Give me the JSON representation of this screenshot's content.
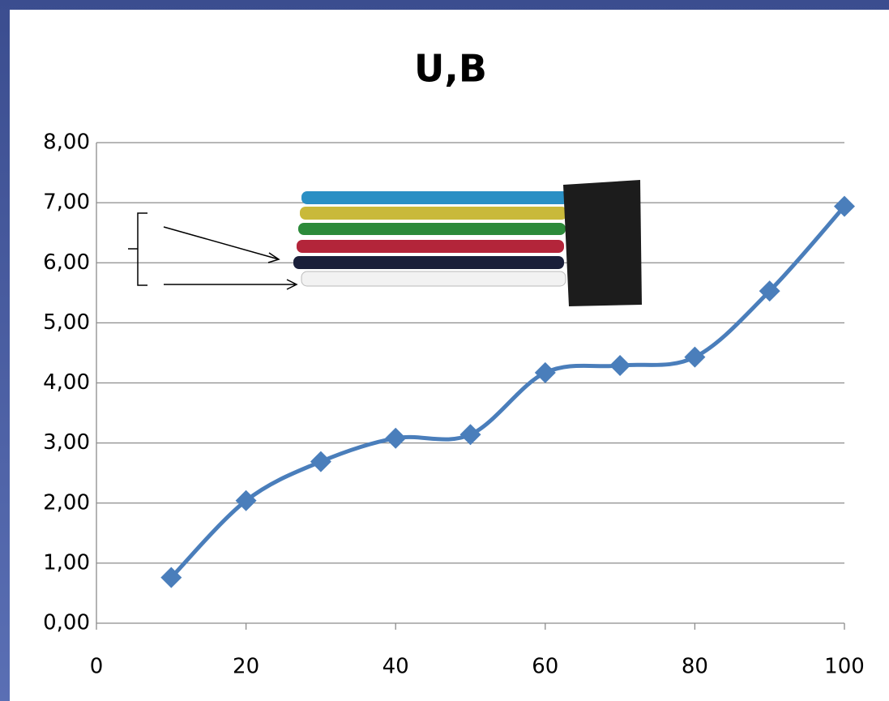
{
  "chart_data": {
    "type": "line",
    "title": "U,B",
    "x": [
      10,
      20,
      30,
      40,
      50,
      60,
      70,
      80,
      90,
      100
    ],
    "series": [
      {
        "color": "#4a7ebb",
        "values": [
          0.76,
          2.04,
          2.69,
          3.08,
          3.14,
          4.17,
          4.29,
          4.43,
          5.53,
          6.94
        ]
      }
    ],
    "xlim": [
      0,
      100
    ],
    "xticks": [
      0,
      20,
      40,
      60,
      80,
      100
    ],
    "ylim": [
      0,
      8
    ],
    "yticks": [
      {
        "value": 0,
        "label": "0,00"
      },
      {
        "value": 1,
        "label": "1,00"
      },
      {
        "value": 2,
        "label": "2,00"
      },
      {
        "value": 3,
        "label": "3,00"
      },
      {
        "value": 4,
        "label": "4,00"
      },
      {
        "value": 5,
        "label": "5,00"
      },
      {
        "value": 6,
        "label": "6,00"
      },
      {
        "value": 7,
        "label": "7,00"
      },
      {
        "value": 8,
        "label": "8,00"
      }
    ],
    "grid": true,
    "smooth": true
  }
}
